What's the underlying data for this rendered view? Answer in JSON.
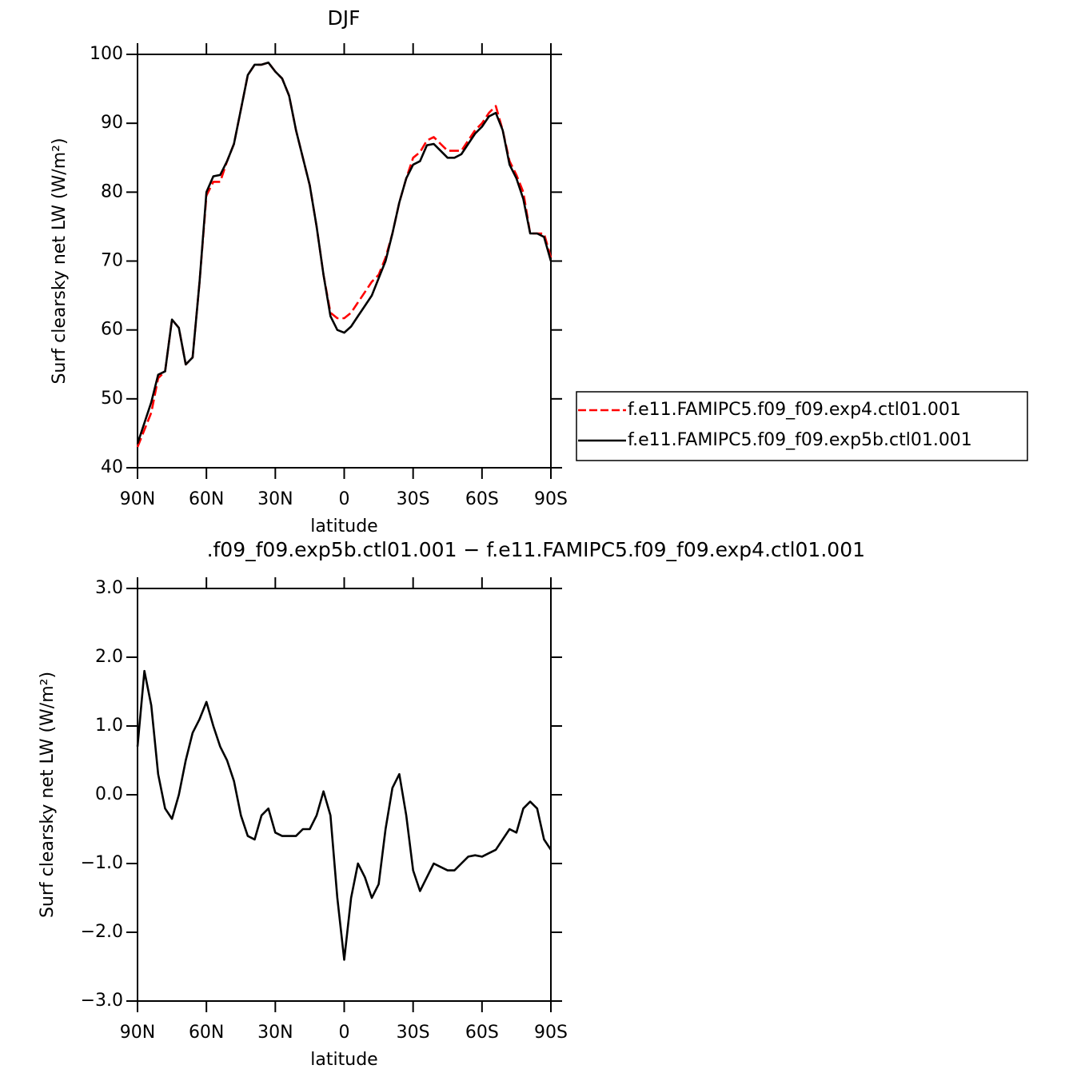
{
  "chart_data": [
    {
      "type": "line",
      "title": "DJF",
      "xlabel": "latitude",
      "ylabel": "Surf clearsky net LW (W/m²)",
      "x": [
        90,
        87,
        84,
        81,
        78,
        75,
        72,
        69,
        66,
        63,
        60,
        57,
        54,
        51,
        48,
        45,
        42,
        39,
        36,
        33,
        30,
        27,
        24,
        21,
        18,
        15,
        12,
        9,
        6,
        3,
        0,
        -3,
        -6,
        -9,
        -12,
        -15,
        -18,
        -21,
        -24,
        -27,
        -30,
        -33,
        -36,
        -39,
        -42,
        -45,
        -48,
        -51,
        -54,
        -57,
        -60,
        -63,
        -66,
        -69,
        -72,
        -75,
        -78,
        -81,
        -84,
        -87,
        -90
      ],
      "xlim": [
        90,
        -90
      ],
      "xticks": [
        {
          "value": 90,
          "label": "90N"
        },
        {
          "value": 60,
          "label": "60N"
        },
        {
          "value": 30,
          "label": "30N"
        },
        0,
        {
          "value": -30,
          "label": "30S"
        },
        {
          "value": -60,
          "label": "60S"
        },
        {
          "value": -90,
          "label": "90S"
        }
      ],
      "ylim": [
        40,
        100
      ],
      "yticks": [
        40,
        50,
        60,
        70,
        80,
        90,
        100
      ],
      "series": [
        {
          "name": "f.e11.FAMIPC5.f09_f09.exp4.ctl01.001",
          "color": "#ff0000",
          "linestyle": "dashed",
          "values": [
            43,
            45.5,
            48,
            53,
            54,
            61.5,
            60.3,
            55,
            56,
            67,
            79.5,
            81.5,
            81.5,
            84.5,
            87,
            92,
            97,
            98.5,
            98.5,
            98.8,
            97.5,
            96.5,
            94,
            89,
            85,
            81,
            75,
            68,
            62.5,
            61.7,
            61.7,
            62.5,
            64,
            65.5,
            67,
            68,
            70.5,
            74,
            78.5,
            82,
            85,
            85.8,
            87.5,
            88,
            87,
            86,
            86,
            86,
            87.5,
            89,
            90,
            91.5,
            92.5,
            89,
            84.5,
            82.5,
            80,
            74,
            74,
            74,
            70.5
          ]
        },
        {
          "name": "f.e11.FAMIPC5.f09_f09.exp5b.ctl01.001",
          "color": "#000000",
          "linestyle": "solid",
          "values": [
            43.5,
            46.5,
            49.5,
            53.5,
            54,
            61.5,
            60.3,
            55,
            56,
            67,
            80,
            82.3,
            82.5,
            84.5,
            87,
            92,
            97,
            98.5,
            98.5,
            98.8,
            97.5,
            96.5,
            94,
            89,
            85,
            81,
            75,
            68,
            62,
            60,
            59.6,
            60.5,
            62,
            63.5,
            65,
            67.5,
            70,
            74,
            78.5,
            82,
            84,
            84.5,
            86.8,
            87,
            86,
            85,
            85,
            85.5,
            87,
            88.5,
            89.5,
            91,
            91.5,
            89,
            84,
            82,
            79,
            74,
            74,
            73.5,
            70
          ]
        }
      ]
    },
    {
      "type": "line",
      "title": ".f09_f09.exp5b.ctl01.001 − f.e11.FAMIPC5.f09_f09.exp4.ctl01.001",
      "xlabel": "latitude",
      "ylabel": "Surf clearsky net LW (W/m²)",
      "x": [
        90,
        87,
        84,
        81,
        78,
        75,
        72,
        69,
        66,
        63,
        60,
        57,
        54,
        51,
        48,
        45,
        42,
        39,
        36,
        33,
        30,
        27,
        24,
        21,
        18,
        15,
        12,
        9,
        6,
        3,
        0,
        -3,
        -6,
        -9,
        -12,
        -15,
        -18,
        -21,
        -24,
        -27,
        -30,
        -33,
        -36,
        -39,
        -42,
        -45,
        -48,
        -51,
        -54,
        -57,
        -60,
        -63,
        -66,
        -69,
        -72,
        -75,
        -78,
        -81,
        -84,
        -87,
        -90
      ],
      "xlim": [
        90,
        -90
      ],
      "xticks": [
        {
          "value": 90,
          "label": "90N"
        },
        {
          "value": 60,
          "label": "60N"
        },
        {
          "value": 30,
          "label": "30N"
        },
        0,
        {
          "value": -30,
          "label": "30S"
        },
        {
          "value": -60,
          "label": "60S"
        },
        {
          "value": -90,
          "label": "90S"
        }
      ],
      "ylim": [
        -3,
        3
      ],
      "yticks": [
        {
          "value": -3,
          "label": "−3.0"
        },
        {
          "value": -2,
          "label": "−2.0"
        },
        {
          "value": -1,
          "label": "−1.0"
        },
        {
          "value": 0,
          "label": "0.0"
        },
        {
          "value": 1,
          "label": "1.0"
        },
        {
          "value": 2,
          "label": "2.0"
        },
        {
          "value": 3,
          "label": "3.0"
        }
      ],
      "series": [
        {
          "color": "#000000",
          "linestyle": "solid",
          "values": [
            0.7,
            1.8,
            1.3,
            0.3,
            -0.2,
            -0.35,
            0,
            0.5,
            0.9,
            1.1,
            1.35,
            1,
            0.7,
            0.5,
            0.2,
            -0.3,
            -0.6,
            -0.65,
            -0.3,
            -0.2,
            -0.55,
            -0.6,
            -0.6,
            -0.6,
            -0.5,
            -0.5,
            -0.3,
            0.05,
            -0.3,
            -1.5,
            -2.4,
            -1.5,
            -1,
            -1.2,
            -1.5,
            -1.3,
            -0.5,
            0.1,
            0.3,
            -0.3,
            -1.1,
            -1.4,
            -1.2,
            -1,
            -1.05,
            -1.1,
            -1.1,
            -1,
            -0.9,
            -0.88,
            -0.9,
            -0.85,
            -0.8,
            -0.65,
            -0.5,
            -0.55,
            -0.2,
            -0.1,
            -0.2,
            -0.65,
            -0.8
          ]
        }
      ]
    }
  ]
}
